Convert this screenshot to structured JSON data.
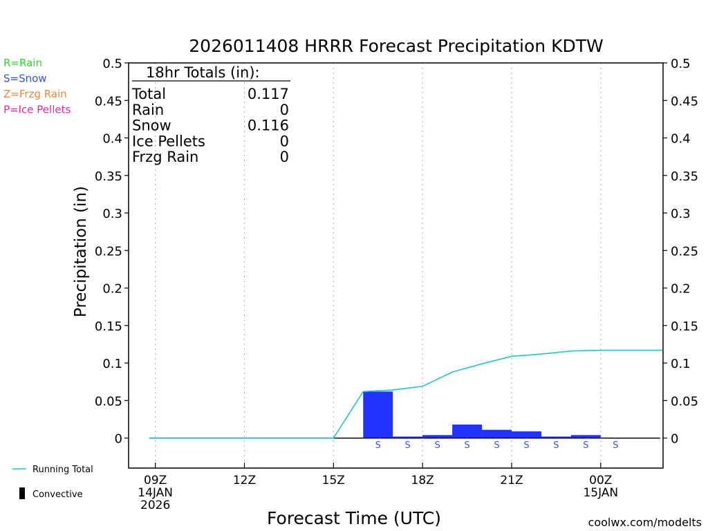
{
  "chart_data": {
    "type": "bar",
    "title": "2026011408 HRRR Forecast Precipitation KDTW",
    "xlabel": "Forecast Time (UTC)",
    "ylabel": "Precipitation (in)",
    "ylim": [
      -0.04,
      0.5
    ],
    "xlim": [
      8.1,
      26.1
    ],
    "yticks": [
      {
        "v": 0.5,
        "label": "0.5"
      },
      {
        "v": 0.45,
        "label": "0.45"
      },
      {
        "v": 0.4,
        "label": "0.4"
      },
      {
        "v": 0.35,
        "label": "0.35"
      },
      {
        "v": 0.3,
        "label": "0.3"
      },
      {
        "v": 0.25,
        "label": "0.25"
      },
      {
        "v": 0.2,
        "label": "0.2"
      },
      {
        "v": 0.15,
        "label": "0.15"
      },
      {
        "v": 0.1,
        "label": "0.1"
      },
      {
        "v": 0.05,
        "label": "0.05"
      },
      {
        "v": 0,
        "label": "0"
      }
    ],
    "xticks": [
      {
        "h": 9,
        "lines": [
          "09Z",
          "14JAN",
          "2026"
        ]
      },
      {
        "h": 12,
        "lines": [
          "12Z"
        ]
      },
      {
        "h": 15,
        "lines": [
          "15Z"
        ]
      },
      {
        "h": 18,
        "lines": [
          "18Z"
        ]
      },
      {
        "h": 21,
        "lines": [
          "21Z"
        ]
      },
      {
        "h": 24,
        "lines": [
          "00Z",
          "15JAN"
        ]
      }
    ],
    "bars": [
      {
        "h": 15.5,
        "value": 0.0
      },
      {
        "h": 16.5,
        "value": 0.062,
        "ptype": "S"
      },
      {
        "h": 17.5,
        "value": 0.002,
        "ptype": "S"
      },
      {
        "h": 18.5,
        "value": 0.004,
        "ptype": "S"
      },
      {
        "h": 19.5,
        "value": 0.018,
        "ptype": "S"
      },
      {
        "h": 20.5,
        "value": 0.011,
        "ptype": "S"
      },
      {
        "h": 21.5,
        "value": 0.009,
        "ptype": "S"
      },
      {
        "h": 22.5,
        "value": 0.002,
        "ptype": "S"
      },
      {
        "h": 23.5,
        "value": 0.004,
        "ptype": "S"
      },
      {
        "h": 24.5,
        "value": 0.0,
        "ptype": "S"
      },
      {
        "h": 25.5,
        "value": 0.0
      }
    ],
    "running_total": [
      {
        "h": 8.8,
        "v": 0
      },
      {
        "h": 15,
        "v": 0
      },
      {
        "h": 16,
        "v": 0.062
      },
      {
        "h": 17,
        "v": 0.064
      },
      {
        "h": 18,
        "v": 0.069
      },
      {
        "h": 19,
        "v": 0.088
      },
      {
        "h": 20,
        "v": 0.099
      },
      {
        "h": 21,
        "v": 0.109
      },
      {
        "h": 22,
        "v": 0.112
      },
      {
        "h": 23,
        "v": 0.116
      },
      {
        "h": 24,
        "v": 0.117
      },
      {
        "h": 26.1,
        "v": 0.117
      }
    ],
    "totals": {
      "heading": "18hr Totals (in):",
      "rows": [
        {
          "label": "Total",
          "value": "0.117"
        },
        {
          "label": "Rain",
          "value": "0"
        },
        {
          "label": "Snow",
          "value": "0.116"
        },
        {
          "label": "Ice Pellets",
          "value": "0"
        },
        {
          "label": "Frzg Rain",
          "value": "0"
        }
      ]
    },
    "ptype_legend": [
      {
        "label": "R=Rain",
        "color": "#22dd22"
      },
      {
        "label": "S=Snow",
        "color": "#3355ee"
      },
      {
        "label": "Z=Frzg Rain",
        "color": "#ee8833"
      },
      {
        "label": "P=Ice Pellets",
        "color": "#ee22aa"
      }
    ],
    "legend": {
      "running_total": "Running Total",
      "convective": "Convective"
    },
    "credit": "coolwx.com/modelts",
    "colors": {
      "bar": "#2233ff",
      "running_total": "#22c8c8",
      "snow_text": "#3355ee",
      "credit": "#cc2222",
      "grid": "#aaaaaa"
    }
  }
}
